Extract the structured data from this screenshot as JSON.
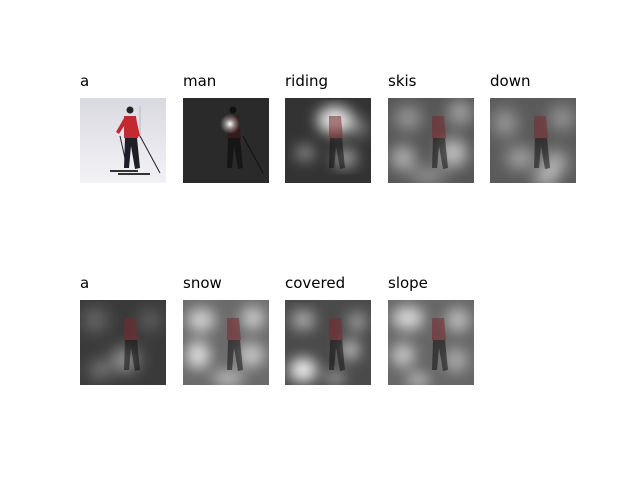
{
  "words": [
    "a",
    "man",
    "riding",
    "skis",
    "down",
    "a",
    "snow",
    "covered",
    "slope"
  ]
}
